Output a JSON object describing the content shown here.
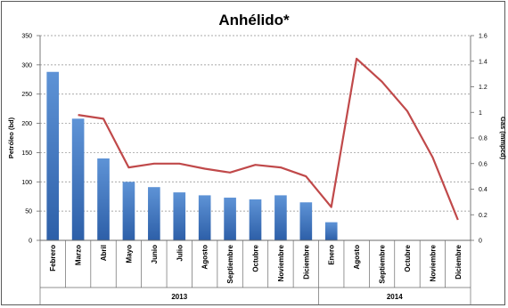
{
  "chart_data": {
    "type": "bar+line",
    "title": "Anhélido*",
    "y_left": {
      "label": "Petróleo (bd)",
      "range": [
        0,
        350
      ],
      "ticks": [
        "0",
        "50",
        "100",
        "150",
        "200",
        "250",
        "300",
        "350"
      ],
      "tick_values": [
        0,
        50,
        100,
        150,
        200,
        250,
        300,
        350
      ]
    },
    "y_right": {
      "label": "Gas (mmpcd)",
      "range": [
        0,
        1.6
      ],
      "ticks": [
        "0",
        "0.2",
        "0.4",
        "0.6",
        "0.8",
        "1",
        "1.2",
        "1.4",
        "1.6"
      ],
      "tick_values": [
        0,
        0.2,
        0.4,
        0.6,
        0.8,
        1,
        1.2,
        1.4,
        1.6
      ]
    },
    "categories": [
      "Febrero",
      "Marzo",
      "Abril",
      "Mayo",
      "Junio",
      "Julio",
      "Agosto",
      "Septiembre",
      "Octubre",
      "Noviembre",
      "Diciembre",
      "Enero",
      "Agosto",
      "Septiembre",
      "Octubre",
      "Noviembre",
      "Diciembre"
    ],
    "groups": [
      {
        "label": "2013",
        "count": 11
      },
      {
        "label": "2014",
        "count": 6
      }
    ],
    "series": [
      {
        "type": "bar",
        "axis": "left",
        "color": "#3a72c4",
        "values": [
          288,
          208,
          140,
          100,
          91,
          82,
          77,
          73,
          70,
          77,
          65,
          31,
          null,
          null,
          null,
          null,
          null
        ]
      },
      {
        "type": "line",
        "axis": "right",
        "color": "#c0494a",
        "values": [
          null,
          0.98,
          0.95,
          0.57,
          0.6,
          0.6,
          0.56,
          0.53,
          0.59,
          0.57,
          0.5,
          0.26,
          1.42,
          1.24,
          1.01,
          0.65,
          0.16
        ]
      }
    ],
    "grid": true,
    "grid_style": "dashed"
  },
  "colors": {
    "bar_top": "#5e93d6",
    "bar_bottom": "#2d5fa8",
    "line": "#c0494a",
    "grid": "#8c8c8c",
    "axis": "#6a6a6a",
    "frame": "#5a5a5a"
  }
}
